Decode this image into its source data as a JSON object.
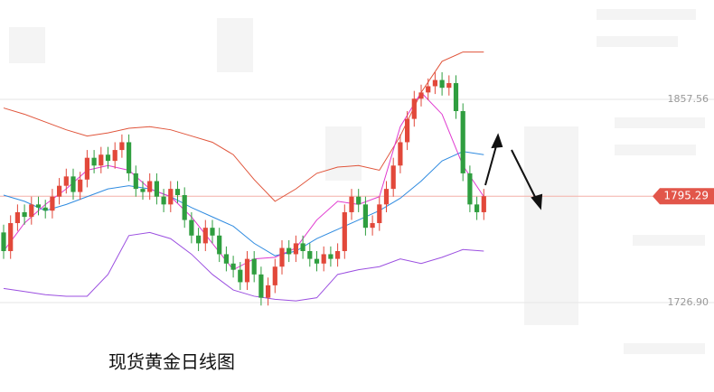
{
  "chart_data": {
    "type": "candlestick",
    "title": "现货黄金日线图",
    "up_color": "#e2483a",
    "down_color": "#2f9e3f",
    "ylim": [
      1669.41,
      1921.44
    ],
    "yticks": [
      1857.56,
      {
        "value": 1726.9,
        "label": "1726.90"
      }
    ],
    "open": [
      1772,
      1760,
      1778,
      1785,
      1782,
      1790,
      1788,
      1786,
      1795,
      1802,
      1808,
      1798,
      1806,
      1820,
      1815,
      1822,
      1818,
      1825,
      1830,
      1810,
      1800,
      1798,
      1805,
      1795,
      1790,
      1800,
      1796,
      1780,
      1770,
      1765,
      1775,
      1770,
      1758,
      1752,
      1748,
      1740,
      1755,
      1745,
      1730,
      1738,
      1750,
      1762,
      1758,
      1765,
      1760,
      1755,
      1752,
      1758,
      1755,
      1760,
      1785,
      1795,
      1790,
      1775,
      1778,
      1790,
      1800,
      1815,
      1830,
      1845,
      1858,
      1862,
      1866,
      1870,
      1865,
      1868,
      1850,
      1810,
      1790,
      1785
    ],
    "high": [
      1777,
      1783,
      1790,
      1790,
      1795,
      1795,
      1793,
      1800,
      1807,
      1813,
      1813,
      1811,
      1825,
      1825,
      1827,
      1827,
      1830,
      1835,
      1835,
      1815,
      1805,
      1810,
      1810,
      1800,
      1805,
      1805,
      1801,
      1785,
      1775,
      1780,
      1780,
      1775,
      1763,
      1757,
      1753,
      1760,
      1760,
      1750,
      1743,
      1755,
      1767,
      1767,
      1770,
      1770,
      1765,
      1760,
      1763,
      1763,
      1765,
      1790,
      1800,
      1800,
      1795,
      1783,
      1795,
      1805,
      1820,
      1835,
      1850,
      1863,
      1867,
      1871,
      1875,
      1875,
      1873,
      1873,
      1855,
      1815,
      1795,
      1800
    ],
    "low": [
      1755,
      1755,
      1773,
      1777,
      1777,
      1783,
      1781,
      1781,
      1790,
      1797,
      1793,
      1793,
      1801,
      1810,
      1810,
      1813,
      1813,
      1820,
      1805,
      1795,
      1793,
      1793,
      1790,
      1785,
      1785,
      1791,
      1775,
      1765,
      1760,
      1760,
      1765,
      1753,
      1747,
      1743,
      1735,
      1735,
      1740,
      1725,
      1725,
      1733,
      1745,
      1753,
      1753,
      1755,
      1750,
      1747,
      1747,
      1750,
      1750,
      1755,
      1780,
      1785,
      1770,
      1770,
      1773,
      1785,
      1795,
      1810,
      1825,
      1840,
      1853,
      1857,
      1861,
      1860,
      1860,
      1845,
      1805,
      1785,
      1780,
      1780
    ],
    "close": [
      1760,
      1778,
      1785,
      1782,
      1790,
      1788,
      1786,
      1795,
      1802,
      1808,
      1798,
      1806,
      1820,
      1815,
      1822,
      1818,
      1825,
      1830,
      1810,
      1800,
      1798,
      1805,
      1795,
      1790,
      1800,
      1796,
      1780,
      1770,
      1765,
      1775,
      1770,
      1758,
      1752,
      1748,
      1740,
      1755,
      1745,
      1730,
      1738,
      1750,
      1762,
      1758,
      1765,
      1760,
      1755,
      1752,
      1758,
      1755,
      1760,
      1785,
      1795,
      1790,
      1775,
      1778,
      1790,
      1800,
      1815,
      1830,
      1845,
      1858,
      1862,
      1866,
      1870,
      1865,
      1868,
      1850,
      1810,
      1790,
      1785,
      1795.29
    ],
    "series": [
      {
        "color": "#e0543a",
        "x": [
          0,
          3,
          6,
          9,
          12,
          15,
          18,
          21,
          24,
          27,
          30,
          33,
          36,
          39,
          42,
          45,
          48,
          51,
          54,
          57,
          60,
          63,
          66,
          69
        ],
        "values": [
          1852,
          1848,
          1843,
          1838,
          1834,
          1836,
          1839,
          1840,
          1838,
          1834,
          1830,
          1822,
          1806,
          1792,
          1800,
          1810,
          1814,
          1815,
          1812,
          1834,
          1862,
          1882,
          1888,
          1888
        ]
      },
      {
        "color": "#2f8be0",
        "x": [
          0,
          3,
          6,
          9,
          12,
          15,
          18,
          21,
          24,
          27,
          30,
          33,
          36,
          39,
          42,
          45,
          48,
          51,
          54,
          57,
          60,
          63,
          66,
          69
        ],
        "values": [
          1796,
          1792,
          1786,
          1790,
          1795,
          1800,
          1802,
          1800,
          1795,
          1788,
          1782,
          1776,
          1765,
          1757,
          1760,
          1768,
          1774,
          1780,
          1786,
          1794,
          1805,
          1818,
          1824,
          1822
        ]
      },
      {
        "color": "#9b4fe0",
        "x": [
          0,
          3,
          6,
          9,
          12,
          15,
          18,
          21,
          24,
          27,
          30,
          33,
          36,
          39,
          42,
          45,
          48,
          51,
          54,
          57,
          60,
          63,
          66,
          69
        ],
        "values": [
          1736,
          1734,
          1732,
          1731,
          1731,
          1745,
          1770,
          1772,
          1768,
          1758,
          1745,
          1735,
          1731,
          1729,
          1728,
          1730,
          1745,
          1748,
          1750,
          1755,
          1752,
          1756,
          1761,
          1760
        ]
      },
      {
        "color": "#e03ad0",
        "x": [
          0,
          3,
          6,
          9,
          12,
          15,
          18,
          21,
          24,
          27,
          30,
          33,
          36,
          39,
          42,
          45,
          48,
          51,
          54,
          57,
          60,
          63,
          66,
          69
        ],
        "values": [
          1760,
          1778,
          1790,
          1800,
          1812,
          1815,
          1812,
          1800,
          1795,
          1782,
          1765,
          1748,
          1755,
          1756,
          1762,
          1780,
          1792,
          1790,
          1795,
          1840,
          1862,
          1848,
          1815,
          1795
        ]
      }
    ]
  }
}
